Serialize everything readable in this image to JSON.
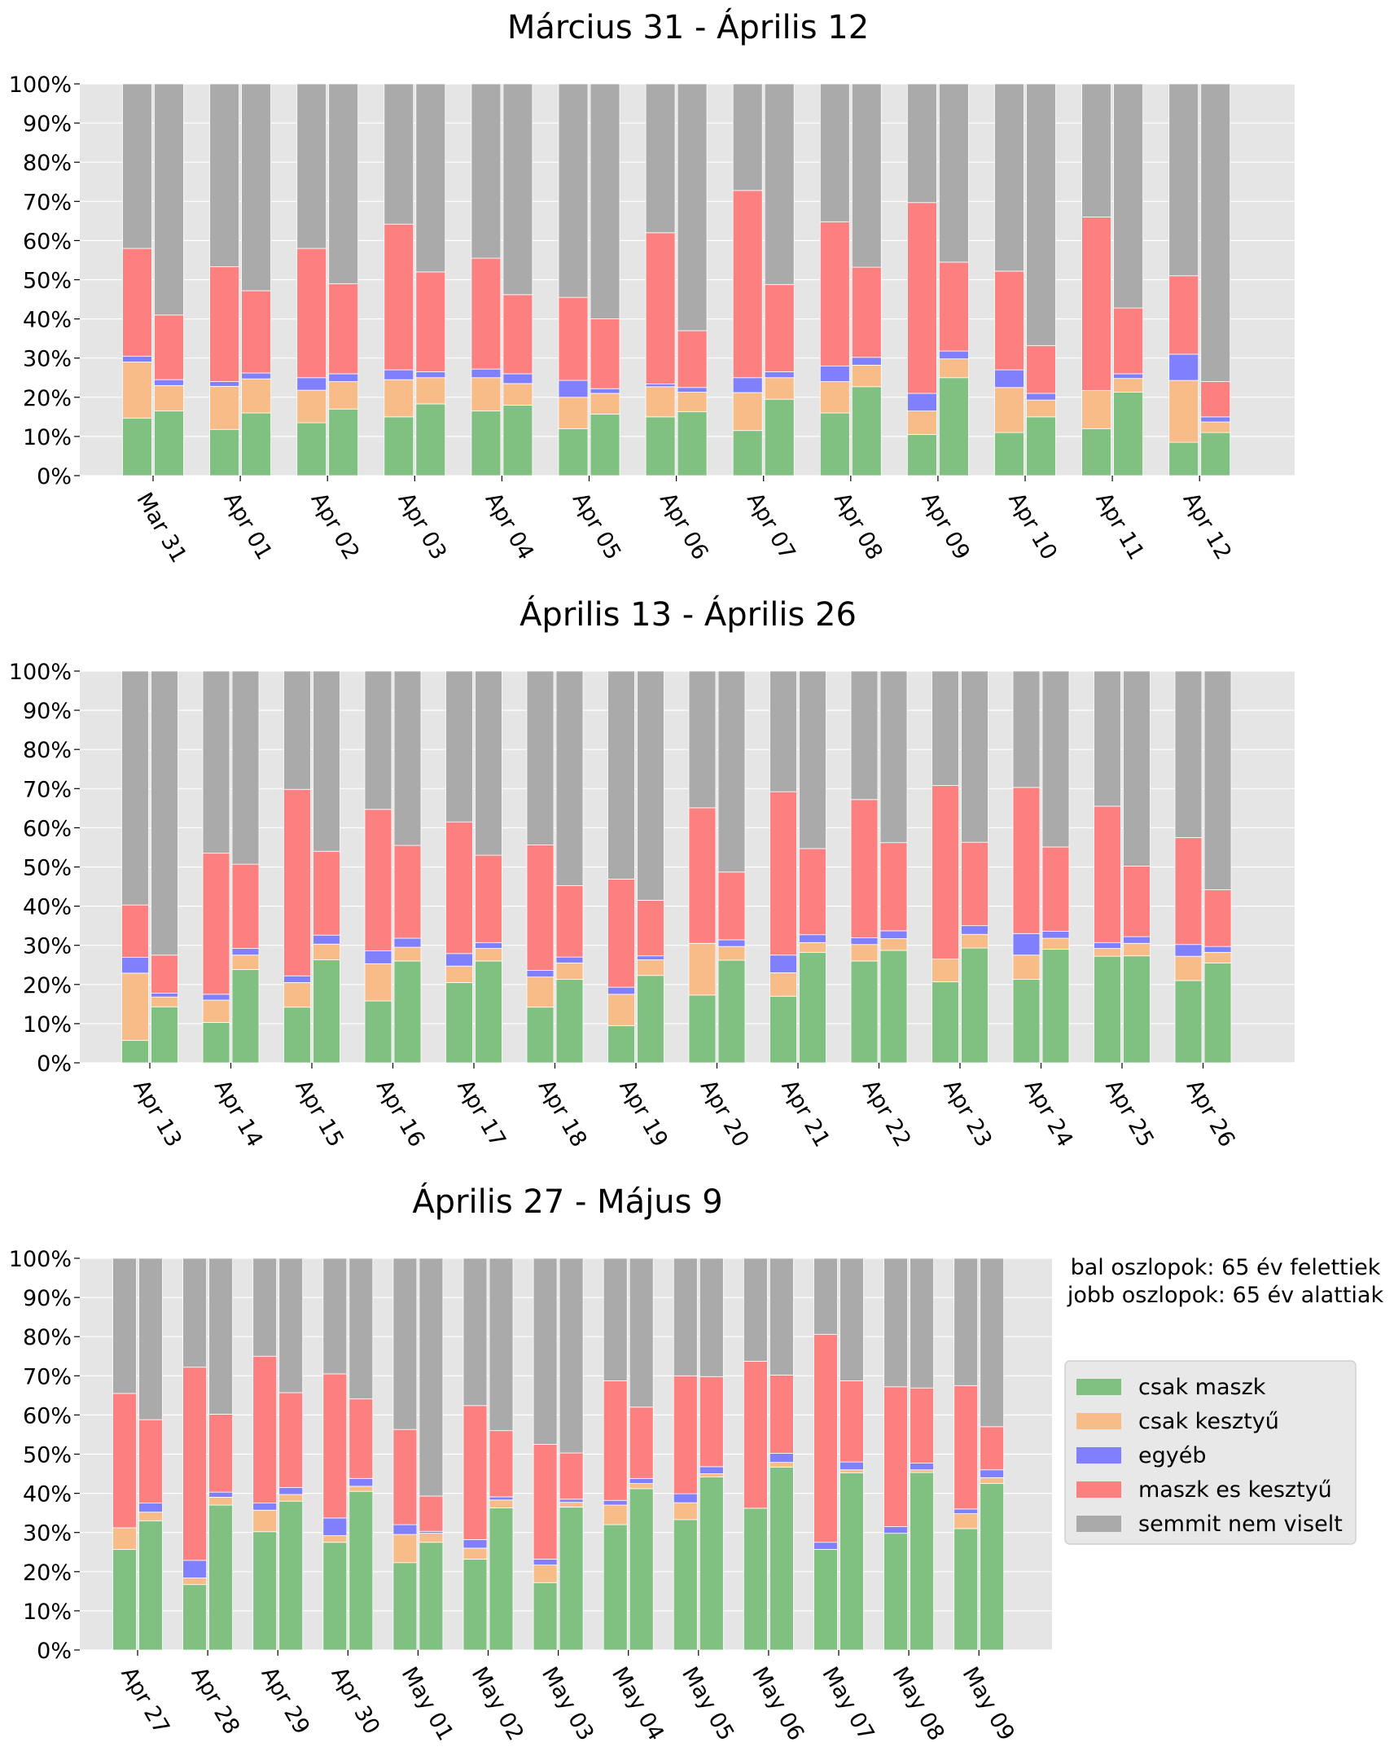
{
  "colors": {
    "csak_maszk": "#80c080",
    "csak_kesztyu": "#f8bc88",
    "egyeb": "#8080fc",
    "maszk_es_kesztyu": "#fc8080",
    "semmit": "#aaaaaa",
    "plot_bg": "#e5e5e5",
    "grid": "#ffffff"
  },
  "y_tick_labels": [
    "0%",
    "10%",
    "20%",
    "30%",
    "40%",
    "50%",
    "60%",
    "70%",
    "80%",
    "90%",
    "100%"
  ],
  "chart_data": [
    {
      "type": "bar",
      "stacked": true,
      "title": "Március 31 - Április 12",
      "ylim": [
        0,
        100
      ],
      "grid": true,
      "categories": [
        "Mar 31",
        "Apr 01",
        "Apr 02",
        "Apr 03",
        "Apr 04",
        "Apr 05",
        "Apr 06",
        "Apr 07",
        "Apr 08",
        "Apr 09",
        "Apr 10",
        "Apr 11",
        "Apr 12"
      ],
      "groups": [
        {
          "name": "bal oszlopok: 65 év felettiek",
          "series": [
            {
              "name": "csak maszk",
              "values": [
                14.7,
                11.8,
                13.5,
                15,
                16.5,
                12,
                15,
                11.5,
                16,
                10.5,
                11,
                12,
                8.5
              ]
            },
            {
              "name": "csak kesztyű",
              "values": [
                14.3,
                11,
                8.3,
                9.5,
                8.5,
                8,
                7.7,
                9.7,
                8,
                6,
                11.5,
                9.7,
                15.8
              ]
            },
            {
              "name": "egyéb",
              "values": [
                1.5,
                1.2,
                3.2,
                2.5,
                2.2,
                4.3,
                0.7,
                3.8,
                4,
                4.5,
                4.5,
                0,
                6.7
              ]
            },
            {
              "name": "maszk es kesztyű",
              "values": [
                27.5,
                29.3,
                33,
                37.2,
                28.3,
                21.2,
                38.6,
                47.8,
                36.8,
                48.7,
                25.2,
                44.3,
                20
              ]
            },
            {
              "name": "semmit nem viselt",
              "values": [
                42,
                46.7,
                42,
                35.8,
                44.5,
                54.5,
                38,
                27.2,
                35.2,
                30.3,
                47.8,
                34,
                49
              ]
            }
          ]
        },
        {
          "name": "jobb oszlopok: 65 év alattiak",
          "series": [
            {
              "name": "csak maszk",
              "values": [
                16.5,
                16,
                17,
                18.3,
                18,
                15.7,
                16.3,
                19.5,
                22.7,
                25,
                15,
                21.3,
                11
              ]
            },
            {
              "name": "csak kesztyű",
              "values": [
                6.5,
                8.7,
                7,
                6.7,
                5.5,
                5.3,
                5,
                5.5,
                5.5,
                4.8,
                4.3,
                3.5,
                2.7
              ]
            },
            {
              "name": "egyéb",
              "values": [
                1.5,
                1.5,
                2,
                1.5,
                2.5,
                1.2,
                1.2,
                1.5,
                2,
                2,
                1.7,
                1.2,
                1.3
              ]
            },
            {
              "name": "maszk es kesztyű",
              "values": [
                16.5,
                21,
                23,
                25.5,
                20.2,
                17.8,
                14.5,
                22.3,
                23,
                22.7,
                12.2,
                16.8,
                9
              ]
            },
            {
              "name": "semmit nem viselt",
              "values": [
                59,
                52.8,
                51,
                48,
                53.8,
                60,
                63,
                51.2,
                46.8,
                45.5,
                66.8,
                57.2,
                76
              ]
            }
          ]
        }
      ]
    },
    {
      "type": "bar",
      "stacked": true,
      "title": "Április 13 - Április 26",
      "ylim": [
        0,
        100
      ],
      "grid": true,
      "categories": [
        "Apr 13",
        "Apr 14",
        "Apr 15",
        "Apr 16",
        "Apr 17",
        "Apr 18",
        "Apr 19",
        "Apr 20",
        "Apr 21",
        "Apr 22",
        "Apr 23",
        "Apr 24",
        "Apr 25",
        "Apr 26"
      ],
      "groups": [
        {
          "name": "bal oszlopok: 65 év felettiek",
          "series": [
            {
              "name": "csak maszk",
              "values": [
                5.7,
                10.3,
                14.2,
                15.8,
                20.5,
                14.2,
                9.5,
                17.3,
                17,
                26,
                20.7,
                21.3,
                27.2,
                21
              ]
            },
            {
              "name": "csak kesztyű",
              "values": [
                17.2,
                5.7,
                6.3,
                9.5,
                4.2,
                7.7,
                8,
                13.2,
                6,
                4.2,
                5.8,
                6.2,
                2,
                6.2
              ]
            },
            {
              "name": "egyéb",
              "values": [
                4,
                1.5,
                1.7,
                3.3,
                3.2,
                1.7,
                1.8,
                0,
                4.5,
                1.7,
                0,
                5.5,
                1.5,
                3
              ]
            },
            {
              "name": "maszk es kesztyű",
              "values": [
                13.4,
                36,
                47.6,
                36.1,
                33.6,
                32,
                27.6,
                34.6,
                41.7,
                35.3,
                44.3,
                37.3,
                34.8,
                27.3
              ]
            },
            {
              "name": "semmit nem viselt",
              "values": [
                59.7,
                46.5,
                30.2,
                35.3,
                38.5,
                44.4,
                53.1,
                34.9,
                30.8,
                32.8,
                29.2,
                29.7,
                34.5,
                42.5
              ]
            }
          ]
        },
        {
          "name": "jobb oszlopok: 65 év alattiak",
          "series": [
            {
              "name": "csak maszk",
              "values": [
                14.3,
                23.8,
                26.3,
                26,
                26,
                21.3,
                22.3,
                26.2,
                28.2,
                28.7,
                29.3,
                29,
                27.3,
                25.5
              ]
            },
            {
              "name": "csak kesztyű",
              "values": [
                2.5,
                3.7,
                4,
                3.5,
                3.2,
                4.2,
                4,
                3.5,
                2.5,
                3,
                3.5,
                2.8,
                3.2,
                2.7
              ]
            },
            {
              "name": "egyéb",
              "values": [
                1,
                1.7,
                2.3,
                2.3,
                1.5,
                1.5,
                1,
                1.7,
                2,
                2,
                2.2,
                1.8,
                1.7,
                1.5
              ]
            },
            {
              "name": "maszk es kesztyű",
              "values": [
                9.7,
                21.5,
                21.4,
                23.7,
                22.3,
                18.2,
                14.2,
                17.3,
                22,
                22.5,
                21.3,
                21.5,
                18,
                14.5
              ]
            },
            {
              "name": "semmit nem viselt",
              "values": [
                72.5,
                49.3,
                46,
                44.5,
                47,
                54.8,
                58.5,
                51.3,
                45.3,
                43.8,
                43.7,
                44.9,
                49.8,
                55.8
              ]
            }
          ]
        }
      ]
    },
    {
      "type": "bar",
      "stacked": true,
      "title": "Április 27 - Május 9",
      "ylim": [
        0,
        100
      ],
      "grid": true,
      "categories": [
        "Apr 27",
        "Apr 28",
        "Apr 29",
        "Apr 30",
        "May 01",
        "May 02",
        "May 03",
        "May 04",
        "May 05",
        "May 06",
        "May 07",
        "May 08",
        "May 09"
      ],
      "groups": [
        {
          "name": "bal oszlopok: 65 év felettiek",
          "series": [
            {
              "name": "csak maszk",
              "values": [
                25.7,
                16.7,
                30.2,
                27.5,
                22.3,
                23.2,
                17.2,
                32,
                33.3,
                36.2,
                25.7,
                29.8,
                31
              ]
            },
            {
              "name": "csak kesztyű",
              "values": [
                5.5,
                1.7,
                5.5,
                1.7,
                7.2,
                2.8,
                4.5,
                5,
                4.3,
                0,
                0,
                0,
                3.8
              ]
            },
            {
              "name": "egyéb",
              "values": [
                0,
                4.5,
                1.8,
                4.5,
                2.5,
                2.2,
                1.5,
                1.2,
                2.3,
                0,
                1.8,
                1.7,
                1.2
              ]
            },
            {
              "name": "maszk es kesztyű",
              "values": [
                34.3,
                49.3,
                37.5,
                36.8,
                24.3,
                34.2,
                29.3,
                30.5,
                30.1,
                37.5,
                53.1,
                35.7,
                31.5
              ]
            },
            {
              "name": "semmit nem viselt",
              "values": [
                34.5,
                27.8,
                25,
                29.5,
                43.7,
                37.6,
                47.5,
                31.3,
                30,
                26.3,
                19.4,
                32.8,
                32.5
              ]
            }
          ]
        },
        {
          "name": "jobb oszlopok: 65 év alattiak",
          "series": [
            {
              "name": "csak maszk",
              "values": [
                33,
                37,
                38,
                40.5,
                27.5,
                36.3,
                36.5,
                41.2,
                44.2,
                46.7,
                45.2,
                45.3,
                42.5
              ]
            },
            {
              "name": "csak kesztyű",
              "values": [
                2.2,
                2,
                1.7,
                1.3,
                2.3,
                2,
                1.2,
                1.3,
                0.8,
                1.2,
                0.8,
                0.7,
                1.5
              ]
            },
            {
              "name": "egyéb",
              "values": [
                2.3,
                1.3,
                1.8,
                2,
                0.5,
                0.8,
                0.8,
                1.3,
                1.8,
                2.3,
                2,
                1.7,
                2
              ]
            },
            {
              "name": "maszk es kesztyű",
              "values": [
                21.3,
                19.9,
                24.2,
                20.3,
                9,
                16.9,
                11.8,
                18.2,
                23,
                20,
                20.7,
                19.2,
                11
              ]
            },
            {
              "name": "semmit nem viselt",
              "values": [
                41.2,
                39.8,
                34.3,
                35.9,
                60.7,
                44,
                49.7,
                38,
                30.2,
                29.8,
                31.3,
                33.1,
                43
              ]
            }
          ]
        }
      ]
    }
  ],
  "note": {
    "line1": "bal oszlopok: 65 év felettiek",
    "line2": "jobb oszlopok: 65 év alattiak"
  },
  "legend": {
    "placement": "right",
    "items": [
      {
        "label": "csak maszk",
        "color_key": "csak_maszk"
      },
      {
        "label": "csak kesztyű",
        "color_key": "csak_kesztyu"
      },
      {
        "label": "egyéb",
        "color_key": "egyeb"
      },
      {
        "label": "maszk es kesztyű",
        "color_key": "maszk_es_kesztyu"
      },
      {
        "label": "semmit nem viselt",
        "color_key": "semmit"
      }
    ]
  }
}
